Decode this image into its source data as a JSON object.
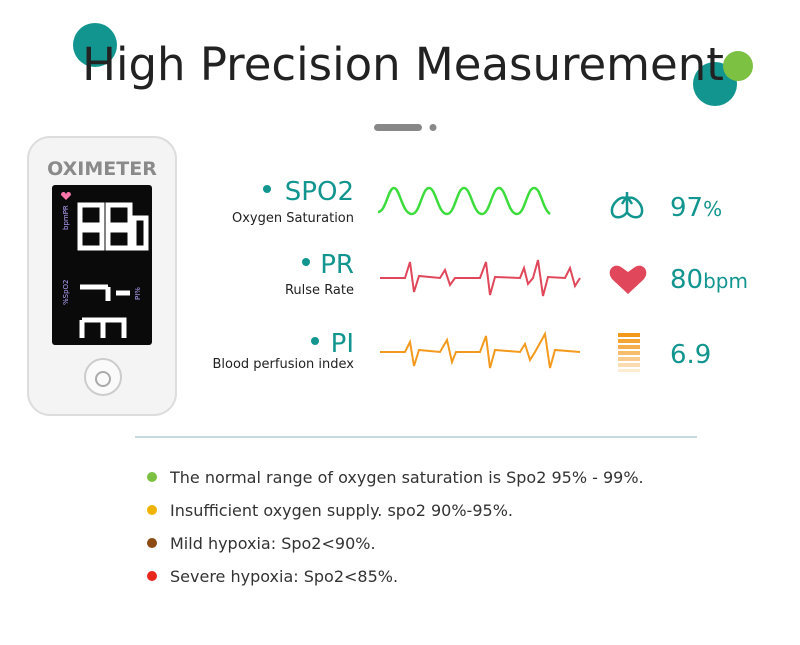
{
  "header": {
    "title": "High Precision Measurement"
  },
  "device": {
    "brand": "OXIMETER",
    "screen_labels": [
      "bpmPR",
      "%SpO2",
      "PI%"
    ]
  },
  "metrics": [
    {
      "label": "SPO2",
      "description": "Oxygen Saturation",
      "value": "97",
      "unit": "%"
    },
    {
      "label": "PR",
      "description": "Rulse Rate",
      "value": "80",
      "unit": "bpm"
    },
    {
      "label": "PI",
      "description": "Blood perfusion index",
      "value": "6.9"
    }
  ],
  "notes": [
    {
      "text": "The normal range of oxygen saturation is Spo2 95% - 99%.",
      "color": "#7cc142"
    },
    {
      "text": "Insufficient oxygen supply. spo2 90%-95%.",
      "color": "#f0b400"
    },
    {
      "text": "Mild hypoxia: Spo2<90%.",
      "color": "#8b4a12"
    },
    {
      "text": "Severe hypoxia: Spo2<85%.",
      "color": "#e8261e"
    }
  ]
}
